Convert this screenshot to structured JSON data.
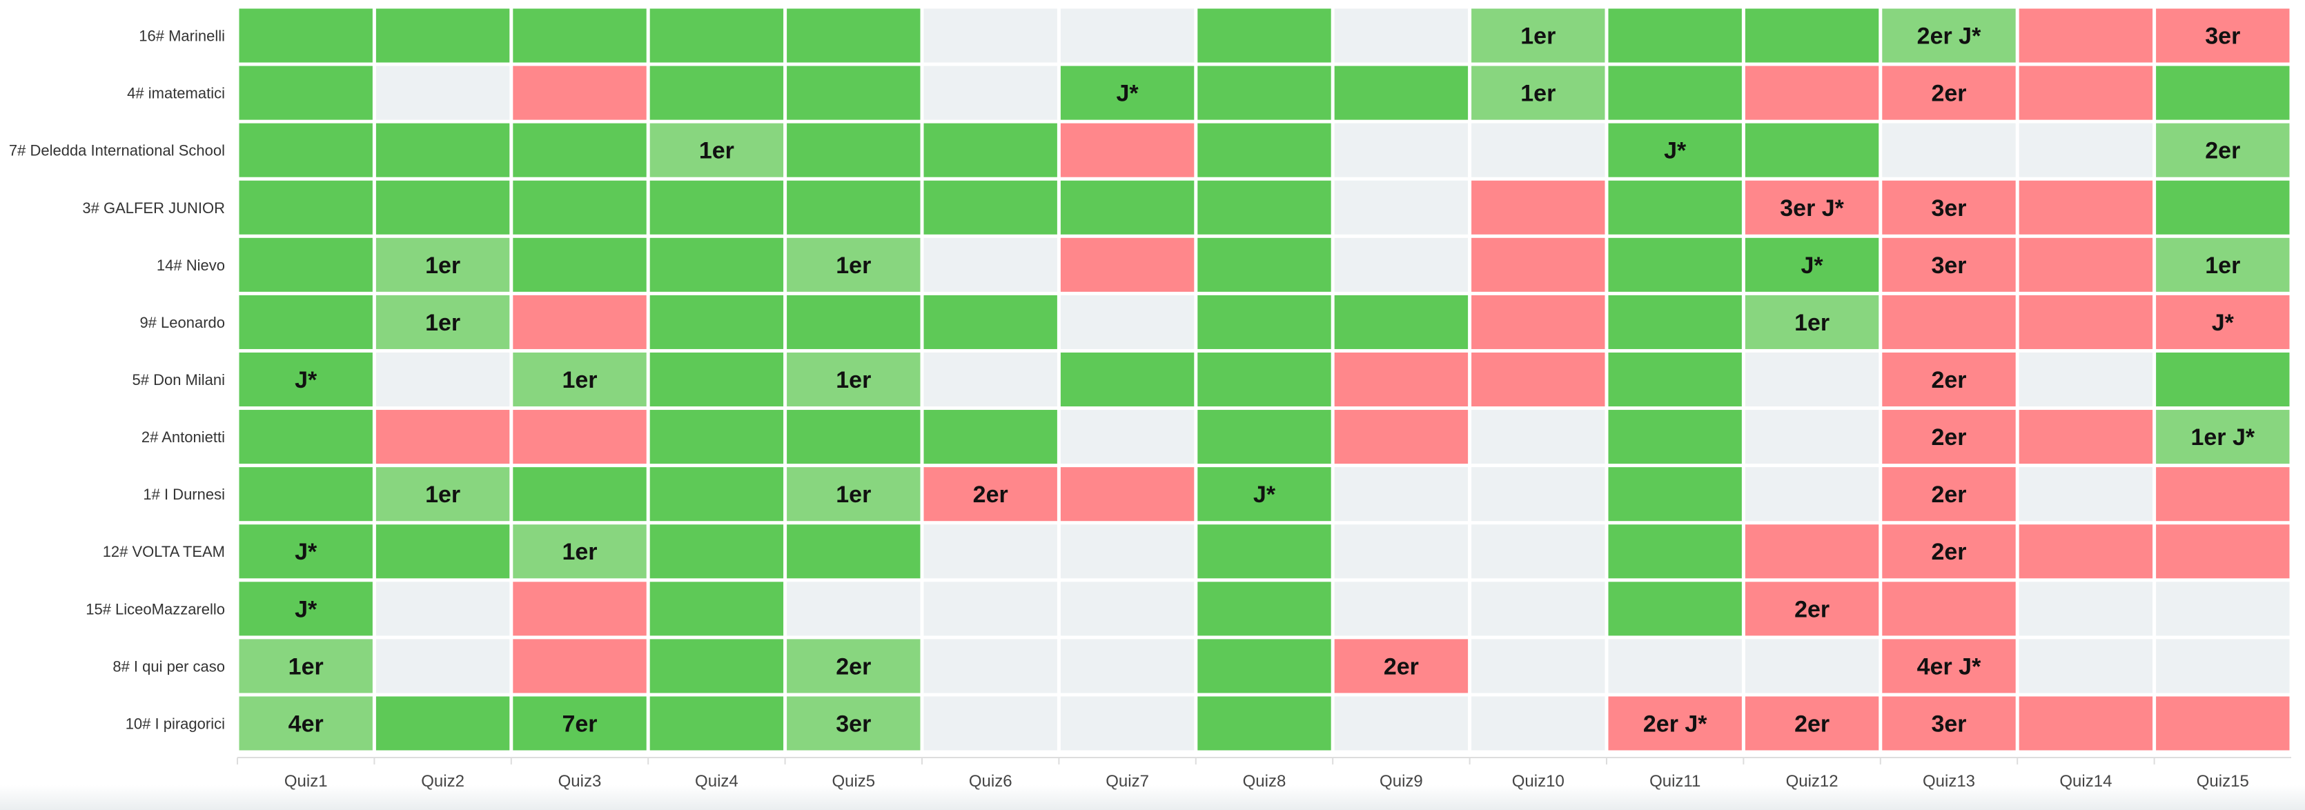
{
  "colors": {
    "correct": "#5ec957",
    "correct_light": "#88d67f",
    "wrong": "#ff878b",
    "empty": "#edf1f3",
    "gap": "#ffffff"
  },
  "chart_data": {
    "type": "heatmap",
    "title": "",
    "columns": [
      "Quiz1",
      "Quiz2",
      "Quiz3",
      "Quiz4",
      "Quiz5",
      "Quiz6",
      "Quiz7",
      "Quiz8",
      "Quiz9",
      "Quiz10",
      "Quiz11",
      "Quiz12",
      "Quiz13",
      "Quiz14",
      "Quiz15"
    ],
    "rows": [
      "16# Marinelli",
      "4# imatematici",
      "7# Deledda International School",
      "3# GALFER JUNIOR",
      "14# Nievo",
      "9# Leonardo",
      "5# Don Milani",
      "2# Antonietti",
      "1# I Durnesi",
      "12# VOLTA TEAM",
      "15# LiceoMazzarello",
      "8# I qui per caso",
      "10# I piragorici"
    ],
    "legend_codes": {
      "G": "correct",
      "L": "correct (light)",
      "R": "wrong",
      "E": "no answer"
    },
    "cells": [
      [
        {
          "s": "G"
        },
        {
          "s": "G"
        },
        {
          "s": "G"
        },
        {
          "s": "G"
        },
        {
          "s": "G"
        },
        {
          "s": "E"
        },
        {
          "s": "E"
        },
        {
          "s": "G"
        },
        {
          "s": "E"
        },
        {
          "s": "L",
          "t": "1er"
        },
        {
          "s": "G"
        },
        {
          "s": "G"
        },
        {
          "s": "L",
          "t": "2er J*"
        },
        {
          "s": "R"
        },
        {
          "s": "R",
          "t": "3er"
        }
      ],
      [
        {
          "s": "G"
        },
        {
          "s": "E"
        },
        {
          "s": "R"
        },
        {
          "s": "G"
        },
        {
          "s": "G"
        },
        {
          "s": "E"
        },
        {
          "s": "G",
          "t": "J*"
        },
        {
          "s": "G"
        },
        {
          "s": "G"
        },
        {
          "s": "L",
          "t": "1er"
        },
        {
          "s": "G"
        },
        {
          "s": "R"
        },
        {
          "s": "R",
          "t": "2er"
        },
        {
          "s": "R"
        },
        {
          "s": "G"
        }
      ],
      [
        {
          "s": "G"
        },
        {
          "s": "G"
        },
        {
          "s": "G"
        },
        {
          "s": "L",
          "t": "1er"
        },
        {
          "s": "G"
        },
        {
          "s": "G"
        },
        {
          "s": "R"
        },
        {
          "s": "G"
        },
        {
          "s": "E"
        },
        {
          "s": "E"
        },
        {
          "s": "G",
          "t": "J*"
        },
        {
          "s": "G"
        },
        {
          "s": "E"
        },
        {
          "s": "E"
        },
        {
          "s": "L",
          "t": "2er"
        }
      ],
      [
        {
          "s": "G"
        },
        {
          "s": "G"
        },
        {
          "s": "G"
        },
        {
          "s": "G"
        },
        {
          "s": "G"
        },
        {
          "s": "G"
        },
        {
          "s": "G"
        },
        {
          "s": "G"
        },
        {
          "s": "E"
        },
        {
          "s": "R"
        },
        {
          "s": "G"
        },
        {
          "s": "R",
          "t": "3er J*"
        },
        {
          "s": "R",
          "t": "3er"
        },
        {
          "s": "R"
        },
        {
          "s": "G"
        }
      ],
      [
        {
          "s": "G"
        },
        {
          "s": "L",
          "t": "1er"
        },
        {
          "s": "G"
        },
        {
          "s": "G"
        },
        {
          "s": "L",
          "t": "1er"
        },
        {
          "s": "E"
        },
        {
          "s": "R"
        },
        {
          "s": "G"
        },
        {
          "s": "E"
        },
        {
          "s": "R"
        },
        {
          "s": "G"
        },
        {
          "s": "G",
          "t": "J*"
        },
        {
          "s": "R",
          "t": "3er"
        },
        {
          "s": "R"
        },
        {
          "s": "L",
          "t": "1er"
        }
      ],
      [
        {
          "s": "G"
        },
        {
          "s": "L",
          "t": "1er"
        },
        {
          "s": "R"
        },
        {
          "s": "G"
        },
        {
          "s": "G"
        },
        {
          "s": "G"
        },
        {
          "s": "E"
        },
        {
          "s": "G"
        },
        {
          "s": "G"
        },
        {
          "s": "R"
        },
        {
          "s": "G"
        },
        {
          "s": "L",
          "t": "1er"
        },
        {
          "s": "R"
        },
        {
          "s": "R"
        },
        {
          "s": "R",
          "t": "J*"
        }
      ],
      [
        {
          "s": "G",
          "t": "J*"
        },
        {
          "s": "E"
        },
        {
          "s": "L",
          "t": "1er"
        },
        {
          "s": "G"
        },
        {
          "s": "L",
          "t": "1er"
        },
        {
          "s": "E"
        },
        {
          "s": "G"
        },
        {
          "s": "G"
        },
        {
          "s": "R"
        },
        {
          "s": "R"
        },
        {
          "s": "G"
        },
        {
          "s": "E"
        },
        {
          "s": "R",
          "t": "2er"
        },
        {
          "s": "E"
        },
        {
          "s": "G"
        }
      ],
      [
        {
          "s": "G"
        },
        {
          "s": "R"
        },
        {
          "s": "R"
        },
        {
          "s": "G"
        },
        {
          "s": "G"
        },
        {
          "s": "G"
        },
        {
          "s": "E"
        },
        {
          "s": "G"
        },
        {
          "s": "R"
        },
        {
          "s": "E"
        },
        {
          "s": "G"
        },
        {
          "s": "E"
        },
        {
          "s": "R",
          "t": "2er"
        },
        {
          "s": "R"
        },
        {
          "s": "L",
          "t": "1er J*"
        }
      ],
      [
        {
          "s": "G"
        },
        {
          "s": "L",
          "t": "1er"
        },
        {
          "s": "G"
        },
        {
          "s": "G"
        },
        {
          "s": "L",
          "t": "1er"
        },
        {
          "s": "R",
          "t": "2er"
        },
        {
          "s": "R"
        },
        {
          "s": "G",
          "t": "J*"
        },
        {
          "s": "E"
        },
        {
          "s": "E"
        },
        {
          "s": "G"
        },
        {
          "s": "E"
        },
        {
          "s": "R",
          "t": "2er"
        },
        {
          "s": "E"
        },
        {
          "s": "R"
        }
      ],
      [
        {
          "s": "G",
          "t": "J*"
        },
        {
          "s": "G"
        },
        {
          "s": "L",
          "t": "1er"
        },
        {
          "s": "G"
        },
        {
          "s": "G"
        },
        {
          "s": "E"
        },
        {
          "s": "E"
        },
        {
          "s": "G"
        },
        {
          "s": "E"
        },
        {
          "s": "E"
        },
        {
          "s": "G"
        },
        {
          "s": "R"
        },
        {
          "s": "R",
          "t": "2er"
        },
        {
          "s": "R"
        },
        {
          "s": "R"
        }
      ],
      [
        {
          "s": "G",
          "t": "J*"
        },
        {
          "s": "E"
        },
        {
          "s": "R"
        },
        {
          "s": "G"
        },
        {
          "s": "E"
        },
        {
          "s": "E"
        },
        {
          "s": "E"
        },
        {
          "s": "G"
        },
        {
          "s": "E"
        },
        {
          "s": "E"
        },
        {
          "s": "G"
        },
        {
          "s": "R",
          "t": "2er"
        },
        {
          "s": "R"
        },
        {
          "s": "E"
        },
        {
          "s": "E"
        }
      ],
      [
        {
          "s": "L",
          "t": "1er"
        },
        {
          "s": "E"
        },
        {
          "s": "R"
        },
        {
          "s": "G"
        },
        {
          "s": "L",
          "t": "2er"
        },
        {
          "s": "E"
        },
        {
          "s": "E"
        },
        {
          "s": "G"
        },
        {
          "s": "R",
          "t": "2er"
        },
        {
          "s": "E"
        },
        {
          "s": "E"
        },
        {
          "s": "E"
        },
        {
          "s": "R",
          "t": "4er J*"
        },
        {
          "s": "E"
        },
        {
          "s": "E"
        }
      ],
      [
        {
          "s": "L",
          "t": "4er"
        },
        {
          "s": "G"
        },
        {
          "s": "G",
          "t": "7er"
        },
        {
          "s": "G"
        },
        {
          "s": "L",
          "t": "3er"
        },
        {
          "s": "E"
        },
        {
          "s": "E"
        },
        {
          "s": "G"
        },
        {
          "s": "E"
        },
        {
          "s": "E"
        },
        {
          "s": "R",
          "t": "2er J*"
        },
        {
          "s": "R",
          "t": "2er"
        },
        {
          "s": "R",
          "t": "3er"
        },
        {
          "s": "R"
        },
        {
          "s": "R"
        }
      ]
    ]
  }
}
